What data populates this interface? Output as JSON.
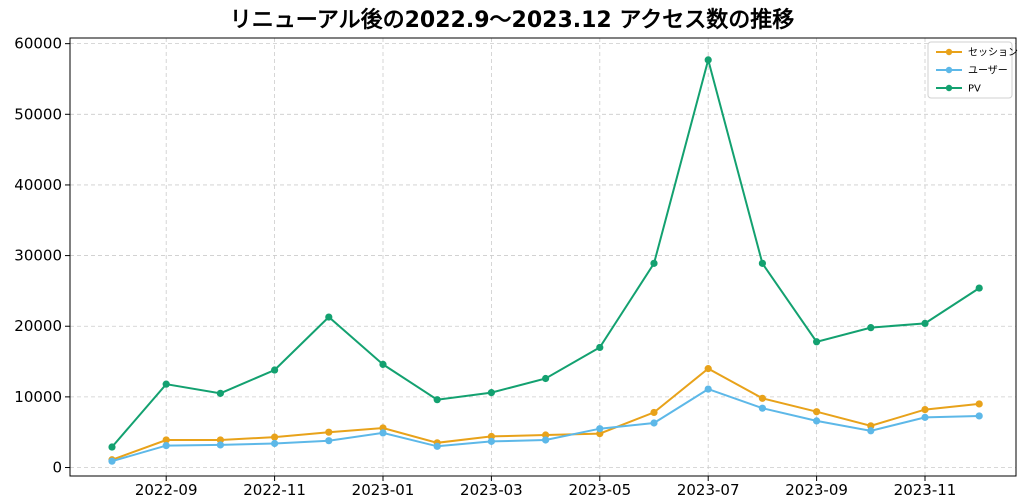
{
  "chart_data": {
    "type": "line",
    "title": "リニューアル後の2022.9～2023.12 アクセス数の推移",
    "x": [
      "2022-08",
      "2022-09",
      "2022-10",
      "2022-11",
      "2022-12",
      "2023-01",
      "2023-02",
      "2023-03",
      "2023-04",
      "2023-05",
      "2023-06",
      "2023-07",
      "2023-08",
      "2023-09",
      "2023-10",
      "2023-11",
      "2023-12"
    ],
    "x_tick_labels": [
      "2022-09",
      "2022-11",
      "2023-01",
      "2023-03",
      "2023-05",
      "2023-07",
      "2023-09",
      "2023-11"
    ],
    "y_tick_labels": [
      "0",
      "10000",
      "20000",
      "30000",
      "40000",
      "50000",
      "60000"
    ],
    "ylim": [
      -1200,
      60800
    ],
    "grid": true,
    "legend_position": "top-right",
    "series": [
      {
        "name": "セッション",
        "color": "#E8A21A",
        "values": [
          1100,
          3900,
          3900,
          4300,
          5000,
          5600,
          3500,
          4400,
          4600,
          4800,
          7800,
          14000,
          9800,
          7900,
          5900,
          8200,
          9000
        ]
      },
      {
        "name": "ユーザー",
        "color": "#5DB8E8",
        "values": [
          900,
          3100,
          3200,
          3400,
          3800,
          4900,
          3000,
          3700,
          3900,
          5500,
          6300,
          11100,
          8400,
          6600,
          5200,
          7100,
          7300
        ]
      },
      {
        "name": "PV",
        "color": "#13A170",
        "values": [
          2900,
          11800,
          10500,
          13800,
          21300,
          14600,
          9600,
          10600,
          12600,
          17000,
          28900,
          57700,
          28900,
          17800,
          19800,
          20400,
          25400
        ]
      }
    ]
  }
}
